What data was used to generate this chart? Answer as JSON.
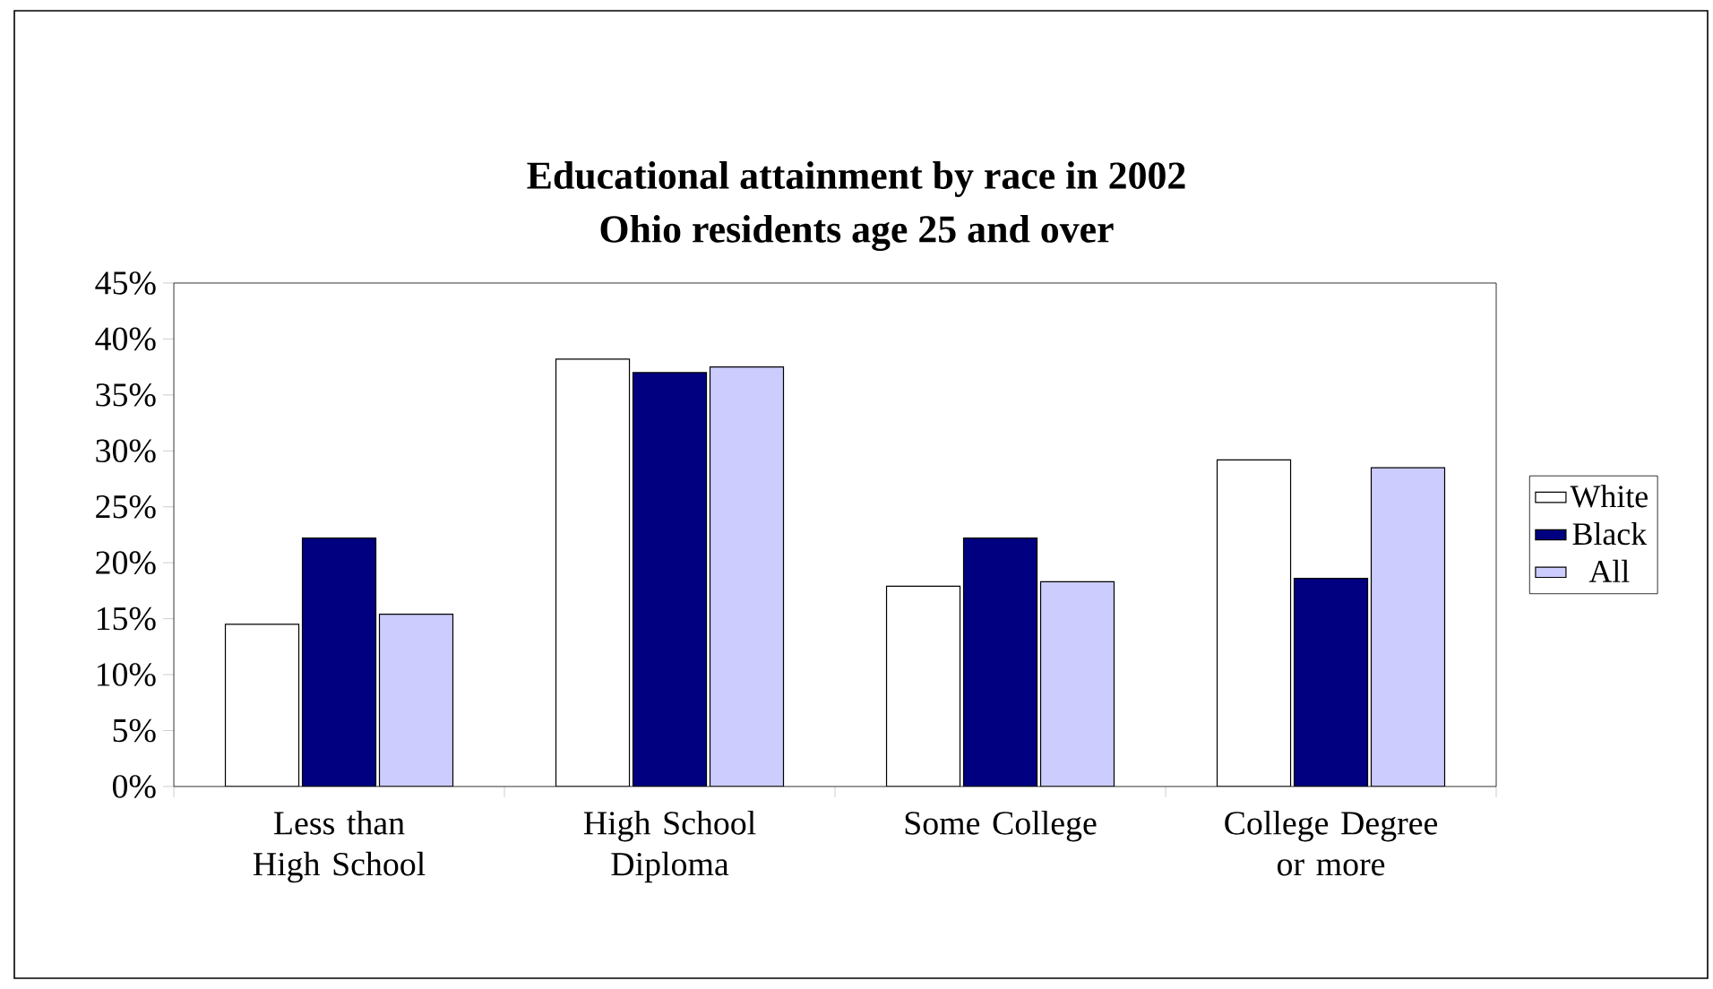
{
  "chart_data": {
    "type": "bar",
    "title": "Educational attainment by race in 2002",
    "subtitle": "Ohio residents age 25 and over",
    "categories": [
      "Less than High School",
      "High School Diploma",
      "Some College",
      "College Degree or more"
    ],
    "series": [
      {
        "name": "White",
        "color": "#ffffff",
        "values": [
          14.5,
          38.2,
          17.9,
          29.2
        ]
      },
      {
        "name": "Black",
        "color": "#000080",
        "values": [
          22.2,
          37.0,
          22.2,
          18.6
        ]
      },
      {
        "name": "All",
        "color": "#ccccff",
        "values": [
          15.4,
          37.5,
          18.3,
          28.5
        ]
      }
    ],
    "ylim": [
      0,
      45
    ],
    "yticks": [
      {
        "value": 0,
        "label": "0%"
      },
      {
        "value": 5,
        "label": "5%"
      },
      {
        "value": 10,
        "label": "10%"
      },
      {
        "value": 15,
        "label": "15%"
      },
      {
        "value": 20,
        "label": "20%"
      },
      {
        "value": 25,
        "label": "25%"
      },
      {
        "value": 30,
        "label": "30%"
      },
      {
        "value": 35,
        "label": "35%"
      },
      {
        "value": 40,
        "label": "40%"
      },
      {
        "value": 45,
        "label": "45%"
      }
    ],
    "grid": false,
    "legend": "right"
  }
}
